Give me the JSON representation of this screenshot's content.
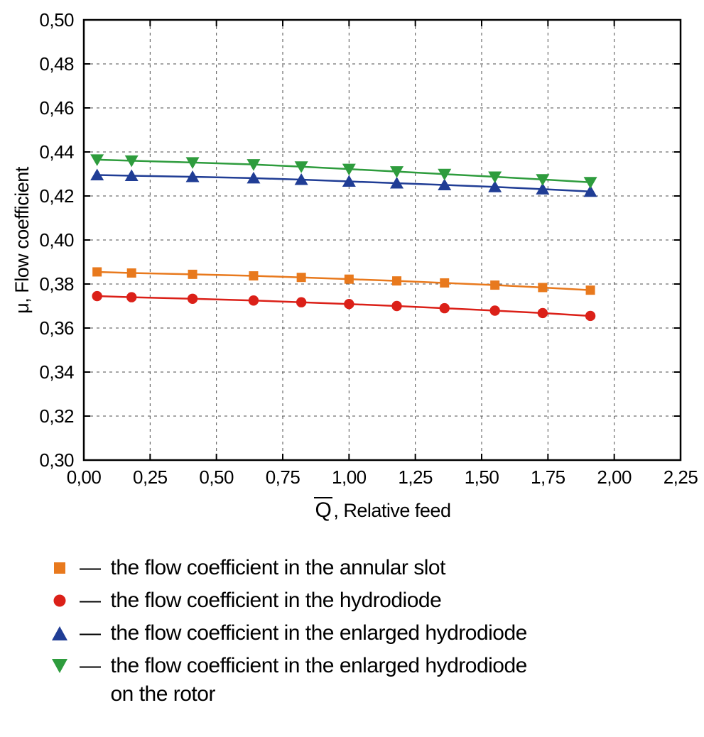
{
  "chart_data": {
    "type": "line",
    "title": "",
    "xlabel_symbol": "Q",
    "xlabel_rest": ", Relative feed",
    "ylabel": "μ, Flow coefficient",
    "xlim": [
      0.0,
      2.25
    ],
    "ylim": [
      0.3,
      0.5
    ],
    "x_ticks": [
      0.0,
      0.25,
      0.5,
      0.75,
      1.0,
      1.25,
      1.5,
      1.75,
      2.0,
      2.25
    ],
    "y_ticks": [
      0.3,
      0.32,
      0.34,
      0.36,
      0.38,
      0.4,
      0.42,
      0.44,
      0.46,
      0.48,
      0.5
    ],
    "decimal_separator": ",",
    "grid": true,
    "legend_position": "below",
    "x": [
      0.05,
      0.18,
      0.41,
      0.64,
      0.82,
      1.0,
      1.18,
      1.36,
      1.55,
      1.73,
      1.91
    ],
    "series": [
      {
        "name": "the flow coefficient in the annular slot",
        "marker": "square",
        "color": "#E8791D",
        "values": [
          0.3855,
          0.385,
          0.3844,
          0.3837,
          0.383,
          0.3822,
          0.3814,
          0.3805,
          0.3795,
          0.3784,
          0.3772
        ]
      },
      {
        "name": "the flow coefficient in the hydrodiode",
        "marker": "circle",
        "color": "#DB2018",
        "values": [
          0.3745,
          0.374,
          0.3733,
          0.3725,
          0.3717,
          0.3709,
          0.37,
          0.369,
          0.3679,
          0.3668,
          0.3655
        ]
      },
      {
        "name": "the flow coefficient in the enlarged hydrodiode",
        "marker": "triangle-up",
        "color": "#203D95",
        "values": [
          0.4295,
          0.4292,
          0.4287,
          0.4281,
          0.4274,
          0.4266,
          0.4258,
          0.425,
          0.4241,
          0.4231,
          0.422
        ]
      },
      {
        "name": "the flow coefficient in the enlarged hydrodiode on the rotor",
        "marker": "triangle-down",
        "color": "#2E9C3D",
        "values": [
          0.4365,
          0.436,
          0.4352,
          0.4343,
          0.4333,
          0.4322,
          0.4311,
          0.4299,
          0.4287,
          0.4275,
          0.4262
        ]
      }
    ]
  },
  "legend": {
    "items": [
      {
        "marker": "square",
        "color": "#E8791D",
        "dash": "—",
        "label": "the flow coefficient in the annular slot"
      },
      {
        "marker": "circle",
        "color": "#DB2018",
        "dash": "—",
        "label": "the flow coefficient in the hydrodiode"
      },
      {
        "marker": "triangle-up",
        "color": "#203D95",
        "dash": "—",
        "label": "the flow coefficient in the enlarged hydrodiode"
      },
      {
        "marker": "triangle-down",
        "color": "#2E9C3D",
        "dash": "—",
        "label": "the flow coefficient in the enlarged hydrodiode",
        "label_line2": "on the rotor"
      }
    ]
  }
}
